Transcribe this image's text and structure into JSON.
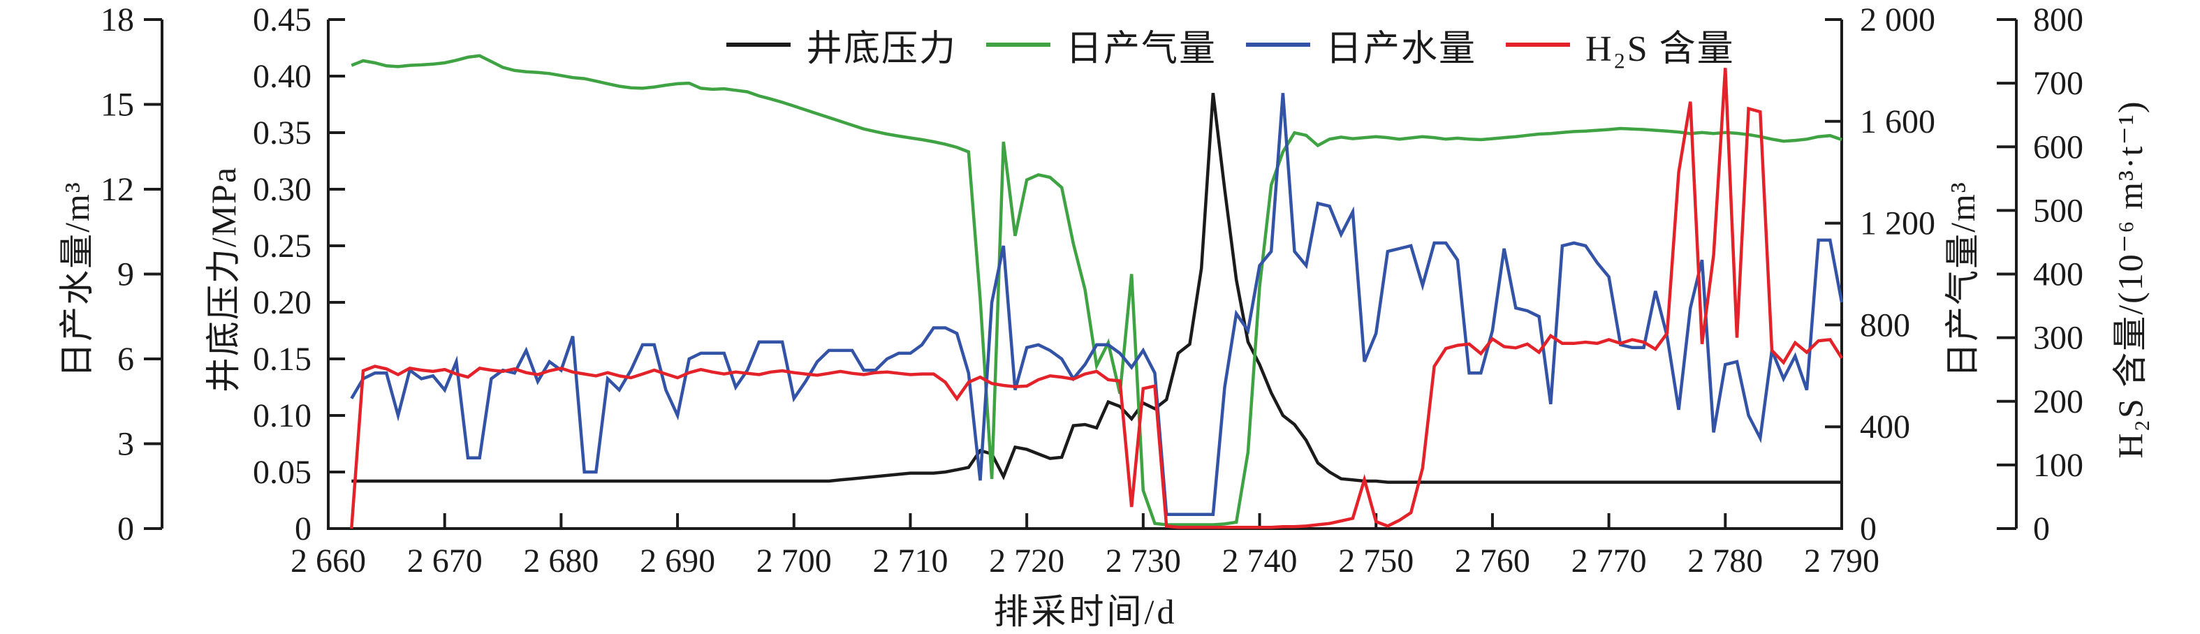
{
  "figure": {
    "kind": "multi-axis production curve chart",
    "background": "#ffffff",
    "frame_color": "#1b1b1b"
  },
  "legend": {
    "items": [
      {
        "id": "pressure",
        "label": "井底压力",
        "color": "#1b1b1b"
      },
      {
        "id": "gas",
        "label": "日产气量",
        "color": "#3fa344"
      },
      {
        "id": "water",
        "label": "日产水量",
        "color": "#3353a6"
      },
      {
        "id": "h2s",
        "label": "H₂S 含量",
        "color": "#e32329"
      }
    ]
  },
  "axes": {
    "x": {
      "title": "排采时间/d",
      "min": 2660,
      "max": 2790,
      "ticks": [
        {
          "v": 2660,
          "label": "2 660"
        },
        {
          "v": 2670,
          "label": "2 670"
        },
        {
          "v": 2680,
          "label": "2 680"
        },
        {
          "v": 2690,
          "label": "2 690"
        },
        {
          "v": 2700,
          "label": "2 700"
        },
        {
          "v": 2710,
          "label": "2 710"
        },
        {
          "v": 2720,
          "label": "2 720"
        },
        {
          "v": 2730,
          "label": "2 730"
        },
        {
          "v": 2740,
          "label": "2 740"
        },
        {
          "v": 2750,
          "label": "2 750"
        },
        {
          "v": 2760,
          "label": "2 760"
        },
        {
          "v": 2770,
          "label": "2 770"
        },
        {
          "v": 2780,
          "label": "2 780"
        },
        {
          "v": 2790,
          "label": "2 790"
        }
      ]
    },
    "water": {
      "title": "日产水量/m³",
      "min": 0,
      "max": 18,
      "ticks": [
        {
          "v": 0,
          "label": "0"
        },
        {
          "v": 3,
          "label": "3"
        },
        {
          "v": 6,
          "label": "6"
        },
        {
          "v": 9,
          "label": "9"
        },
        {
          "v": 12,
          "label": "12"
        },
        {
          "v": 15,
          "label": "15"
        },
        {
          "v": 18,
          "label": "18"
        }
      ]
    },
    "pressure": {
      "title": "井底压力/MPa",
      "min": 0,
      "max": 0.45,
      "ticks": [
        {
          "v": 0,
          "label": "0"
        },
        {
          "v": 0.05,
          "label": "0.05"
        },
        {
          "v": 0.1,
          "label": "0.10"
        },
        {
          "v": 0.15,
          "label": "0.15"
        },
        {
          "v": 0.2,
          "label": "0.20"
        },
        {
          "v": 0.25,
          "label": "0.25"
        },
        {
          "v": 0.3,
          "label": "0.30"
        },
        {
          "v": 0.35,
          "label": "0.35"
        },
        {
          "v": 0.4,
          "label": "0.40"
        },
        {
          "v": 0.45,
          "label": "0.45"
        }
      ]
    },
    "gas": {
      "title": "日产气量/m³",
      "min": 0,
      "max": 2000,
      "ticks": [
        {
          "v": 0,
          "label": "0"
        },
        {
          "v": 400,
          "label": "400"
        },
        {
          "v": 800,
          "label": "800"
        },
        {
          "v": 1200,
          "label": "1 200"
        },
        {
          "v": 1600,
          "label": "1 600"
        },
        {
          "v": 2000,
          "label": "2 000"
        }
      ]
    },
    "h2s": {
      "title": "H₂S 含量/(10⁻⁶ m³·t⁻¹)",
      "min": 0,
      "max": 800,
      "ticks": [
        {
          "v": 0,
          "label": "0"
        },
        {
          "v": 100,
          "label": "100"
        },
        {
          "v": 200,
          "label": "200"
        },
        {
          "v": 300,
          "label": "300"
        },
        {
          "v": 400,
          "label": "400"
        },
        {
          "v": 500,
          "label": "500"
        },
        {
          "v": 600,
          "label": "600"
        },
        {
          "v": 700,
          "label": "700"
        },
        {
          "v": 800,
          "label": "800"
        }
      ]
    }
  },
  "chart_data": {
    "type": "line",
    "x_start": 2662,
    "x_step": 1,
    "xlabel": "排采时间/d",
    "grid": false,
    "legend_position": "top-center",
    "series": [
      {
        "name": "井底压力",
        "axis": "pressure",
        "color": "#1b1b1b",
        "unit": "MPa",
        "values": [
          0.042,
          0.042,
          0.042,
          0.042,
          0.042,
          0.042,
          0.042,
          0.042,
          0.042,
          0.042,
          0.042,
          0.042,
          0.042,
          0.042,
          0.042,
          0.042,
          0.042,
          0.042,
          0.042,
          0.042,
          0.042,
          0.042,
          0.042,
          0.042,
          0.042,
          0.042,
          0.042,
          0.042,
          0.042,
          0.042,
          0.042,
          0.042,
          0.042,
          0.042,
          0.042,
          0.042,
          0.042,
          0.042,
          0.042,
          0.042,
          0.042,
          0.042,
          0.043,
          0.044,
          0.045,
          0.046,
          0.047,
          0.048,
          0.049,
          0.049,
          0.049,
          0.05,
          0.052,
          0.054,
          0.069,
          0.066,
          0.046,
          0.072,
          0.07,
          0.066,
          0.062,
          0.063,
          0.091,
          0.092,
          0.089,
          0.112,
          0.108,
          0.097,
          0.111,
          0.106,
          0.114,
          0.155,
          0.163,
          0.23,
          0.385,
          0.3,
          0.22,
          0.165,
          0.145,
          0.12,
          0.1,
          0.092,
          0.078,
          0.058,
          0.05,
          0.044,
          0.043,
          0.042,
          0.042,
          0.041,
          0.041,
          0.041,
          0.041,
          0.041,
          0.041,
          0.041,
          0.041,
          0.041,
          0.041,
          0.041,
          0.041,
          0.041,
          0.041,
          0.041,
          0.041,
          0.041,
          0.041,
          0.041,
          0.041,
          0.041,
          0.041,
          0.041,
          0.041,
          0.041,
          0.041,
          0.041,
          0.041,
          0.041,
          0.041,
          0.041,
          0.041,
          0.041,
          0.041,
          0.041,
          0.041,
          0.041,
          0.041,
          0.041,
          0.041
        ]
      },
      {
        "name": "日产气量",
        "axis": "gas",
        "color": "#3fa344",
        "unit": "m³",
        "values": [
          1820,
          1838,
          1830,
          1818,
          1815,
          1820,
          1822,
          1825,
          1830,
          1840,
          1852,
          1858,
          1835,
          1812,
          1800,
          1795,
          1792,
          1788,
          1780,
          1772,
          1768,
          1758,
          1748,
          1738,
          1732,
          1730,
          1735,
          1742,
          1748,
          1750,
          1730,
          1726,
          1728,
          1722,
          1716,
          1700,
          1688,
          1675,
          1660,
          1645,
          1630,
          1615,
          1600,
          1585,
          1570,
          1560,
          1550,
          1542,
          1535,
          1528,
          1520,
          1510,
          1498,
          1480,
          900,
          195,
          1520,
          1150,
          1370,
          1390,
          1380,
          1340,
          1120,
          940,
          640,
          730,
          530,
          1000,
          150,
          20,
          15,
          15,
          15,
          15,
          15,
          18,
          25,
          300,
          950,
          1350,
          1480,
          1555,
          1545,
          1505,
          1530,
          1538,
          1532,
          1536,
          1540,
          1536,
          1530,
          1535,
          1540,
          1536,
          1530,
          1534,
          1530,
          1528,
          1532,
          1536,
          1540,
          1545,
          1550,
          1552,
          1556,
          1560,
          1562,
          1565,
          1568,
          1572,
          1570,
          1568,
          1565,
          1562,
          1558,
          1552,
          1556,
          1552,
          1556,
          1553,
          1548,
          1540,
          1530,
          1522,
          1525,
          1530,
          1540,
          1544,
          1528
        ]
      },
      {
        "name": "日产水量",
        "axis": "water",
        "color": "#3353a6",
        "unit": "m³",
        "values": [
          4.6,
          5.3,
          5.5,
          5.5,
          4.0,
          5.6,
          5.3,
          5.4,
          4.9,
          5.9,
          2.5,
          2.5,
          5.3,
          5.6,
          5.5,
          6.3,
          5.2,
          5.9,
          5.6,
          6.8,
          2.0,
          2.0,
          5.3,
          4.9,
          5.6,
          6.5,
          6.5,
          4.9,
          4.0,
          6.0,
          6.2,
          6.2,
          6.2,
          5.0,
          5.6,
          6.6,
          6.6,
          6.6,
          4.6,
          5.2,
          5.9,
          6.3,
          6.3,
          6.3,
          5.6,
          5.6,
          6.0,
          6.2,
          6.2,
          6.5,
          7.1,
          7.1,
          6.9,
          5.5,
          1.7,
          8.0,
          10.0,
          4.9,
          6.4,
          6.5,
          6.3,
          6.0,
          5.3,
          5.8,
          6.5,
          6.5,
          6.2,
          5.7,
          6.3,
          5.5,
          0.5,
          0.5,
          0.5,
          0.5,
          0.5,
          5.0,
          7.6,
          7.0,
          9.3,
          9.8,
          15.4,
          9.8,
          9.3,
          11.5,
          11.4,
          10.4,
          11.2,
          5.9,
          6.9,
          9.8,
          9.9,
          10.0,
          8.6,
          10.1,
          10.1,
          9.5,
          5.5,
          5.5,
          7.0,
          9.9,
          7.8,
          7.7,
          7.5,
          4.4,
          10.0,
          10.1,
          10.0,
          9.4,
          8.9,
          6.5,
          6.4,
          6.4,
          8.4,
          6.8,
          4.2,
          7.8,
          9.5,
          3.4,
          5.8,
          5.9,
          4.0,
          3.2,
          6.3,
          5.3,
          6.1,
          4.9,
          10.2,
          10.2,
          8.0
        ]
      },
      {
        "name": "H₂S 含量",
        "axis": "h2s",
        "color": "#e32329",
        "unit": "10⁻⁶ m³·t⁻¹",
        "values": [
          0,
          248,
          255,
          251,
          242,
          252,
          249,
          247,
          250,
          243,
          238,
          252,
          249,
          247,
          251,
          245,
          242,
          248,
          252,
          246,
          243,
          240,
          245,
          240,
          237,
          243,
          249,
          243,
          237,
          245,
          250,
          246,
          243,
          246,
          244,
          242,
          246,
          248,
          245,
          243,
          241,
          244,
          247,
          244,
          242,
          245,
          246,
          244,
          242,
          243,
          243,
          230,
          204,
          230,
          238,
          228,
          225,
          223,
          224,
          234,
          240,
          238,
          235,
          243,
          247,
          234,
          232,
          34,
          220,
          224,
          4,
          2,
          2,
          2,
          2,
          2,
          2,
          2,
          2,
          2,
          3,
          3,
          4,
          6,
          8,
          12,
          16,
          77,
          11,
          4,
          13,
          25,
          95,
          255,
          283,
          288,
          290,
          275,
          298,
          286,
          284,
          290,
          277,
          303,
          291,
          291,
          293,
          291,
          297,
          291,
          297,
          293,
          282,
          307,
          560,
          671,
          290,
          430,
          724,
          300,
          660,
          655,
          280,
          261,
          292,
          277,
          295,
          297,
          268
        ]
      }
    ]
  }
}
